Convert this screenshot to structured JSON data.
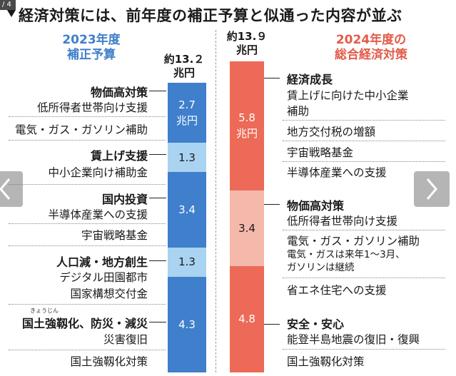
{
  "viewer": {
    "counter": "/ 4",
    "prev_icon": "chevron-left-icon",
    "next_icon": "chevron-right-icon"
  },
  "title": "経済対策には、前年度の補正予算と似通った内容が並ぶ",
  "colors": {
    "blue_dark": "#3f7fcb",
    "blue_light": "#a9d3f1",
    "red_dark": "#ec6a57",
    "red_light": "#f5b9ac",
    "blue_text": "#3f7fcb",
    "red_text": "#e25b4a"
  },
  "left": {
    "header_line1": "2023年度",
    "header_line2": "補正予算",
    "total_line1": "約13.２",
    "total_line2": "兆円",
    "groups": [
      {
        "category": "物価高対策",
        "items": [
          "低所得者世帯向け支援",
          "電気・ガス・ガソリン補助"
        ]
      },
      {
        "category": "賃上げ支援",
        "items": [
          "中小企業向け補助金"
        ]
      },
      {
        "category": "国内投資",
        "items": [
          "半導体産業への支援",
          "宇宙戦略基金"
        ]
      },
      {
        "category": "人口減・地方創生",
        "items": [
          "デジタル田園都市",
          "国家構想交付金"
        ]
      },
      {
        "category": "国土強靱化、防災・減災",
        "ruby": "きょうじん",
        "items": [
          "災害復旧",
          "国土強靱化対策"
        ]
      }
    ]
  },
  "right": {
    "header_line1": "2024年度の",
    "header_line2": "総合経済対策",
    "total_line1": "約13.９",
    "total_line2": "兆円",
    "groups": [
      {
        "category": "経済成長",
        "items": [
          "賃上げに向けた中小企業",
          "補助",
          "地方交付税の増額",
          "宇宙戦略基金",
          "半導体産業への支援"
        ]
      },
      {
        "category": "物価高対策",
        "items": [
          "低所得者世帯向け支援",
          "電気・ガス・ガソリン補助"
        ],
        "note_line1": "電気・ガスは来年1～3月、",
        "note_line2": "ガソリンは継続",
        "items_after": [
          "省エネ住宅への支援"
        ]
      },
      {
        "category": "安全・安心",
        "items": [
          "能登半島地震の復旧・復興",
          "国土強靱化対策"
        ]
      }
    ]
  },
  "chart_data": [
    {
      "type": "bar",
      "layout": "stacked-single",
      "title": "2023年度 補正予算",
      "total": "約13.２兆円",
      "categories": [
        "物価高対策",
        "賃上げ支援",
        "国内投資",
        "人口減・地方創生",
        "国土強靱化、防災・減災"
      ],
      "values": [
        2.7,
        1.3,
        3.4,
        1.3,
        4.3
      ],
      "labels": [
        "2.7\n兆円",
        "1.3",
        "3.4",
        "1.3",
        "4.3"
      ],
      "colors": [
        "#3f7fcb",
        "#a9d3f1",
        "#3f7fcb",
        "#a9d3f1",
        "#3f7fcb"
      ]
    },
    {
      "type": "bar",
      "layout": "stacked-single",
      "title": "2024年度の 総合経済対策",
      "total": "約13.９兆円",
      "categories": [
        "経済成長",
        "物価高対策",
        "安全・安心"
      ],
      "values": [
        5.8,
        3.4,
        4.8
      ],
      "labels": [
        "5.8\n兆円",
        "3.4",
        "4.8"
      ],
      "colors": [
        "#ec6a57",
        "#f5b9ac",
        "#ec6a57"
      ]
    }
  ]
}
